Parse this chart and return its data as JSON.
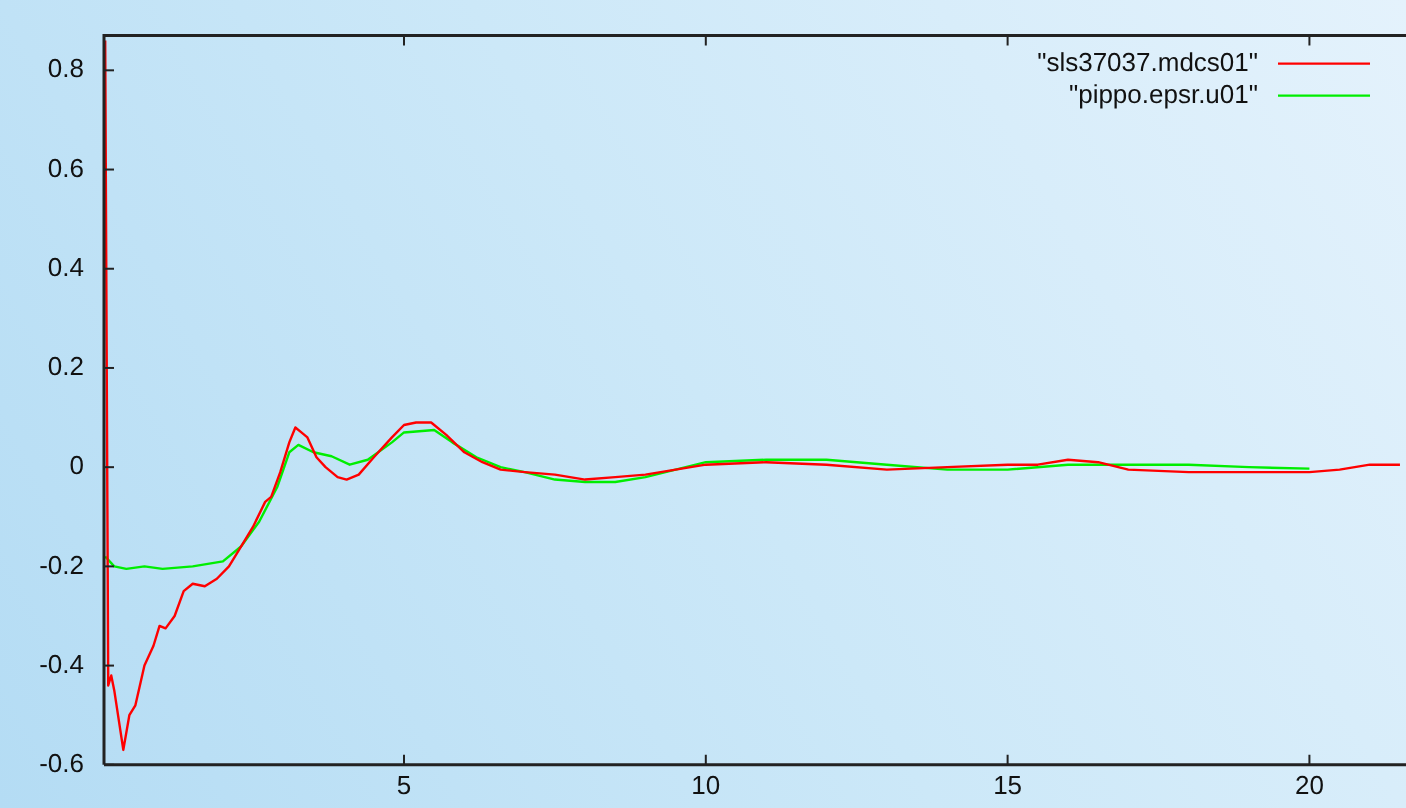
{
  "chart_data": {
    "type": "line",
    "xlim": [
      0.03,
      21.6
    ],
    "ylim": [
      -0.6,
      0.87
    ],
    "xticks": [
      5,
      10,
      15,
      20
    ],
    "yticks": [
      -0.6,
      -0.4,
      -0.2,
      0,
      0.2,
      0.4,
      0.6,
      0.8
    ],
    "grid": false,
    "legend": "top right",
    "marker": "none",
    "line_style": "solid",
    "series": [
      {
        "name": "\"sls37037.mdcs01\"",
        "color": "#ff0000",
        "x": [
          0.05,
          0.1,
          0.15,
          0.2,
          0.35,
          0.45,
          0.55,
          0.7,
          0.85,
          0.95,
          1.05,
          1.2,
          1.35,
          1.5,
          1.7,
          1.9,
          2.1,
          2.3,
          2.5,
          2.7,
          2.8,
          2.95,
          3.1,
          3.2,
          3.3,
          3.4,
          3.55,
          3.7,
          3.9,
          4.05,
          4.25,
          4.5,
          4.8,
          5.0,
          5.2,
          5.45,
          5.7,
          6.0,
          6.3,
          6.6,
          7.0,
          7.5,
          8.0,
          8.5,
          9.0,
          9.5,
          10,
          11,
          12,
          13,
          14,
          15,
          15.5,
          16,
          16.5,
          17,
          18,
          19,
          20,
          20.5,
          21,
          21.5
        ],
        "values": [
          0.86,
          -0.44,
          -0.42,
          -0.45,
          -0.57,
          -0.5,
          -0.48,
          -0.4,
          -0.36,
          -0.32,
          -0.325,
          -0.3,
          -0.25,
          -0.235,
          -0.24,
          -0.225,
          -0.2,
          -0.16,
          -0.12,
          -0.07,
          -0.06,
          -0.01,
          0.05,
          0.08,
          0.07,
          0.06,
          0.02,
          0,
          -0.02,
          -0.025,
          -0.015,
          0.02,
          0.06,
          0.085,
          0.09,
          0.09,
          0.065,
          0.03,
          0.01,
          -0.005,
          -0.01,
          -0.015,
          -0.025,
          -0.02,
          -0.015,
          -0.005,
          0.005,
          0.01,
          0.005,
          -0.005,
          0,
          0.005,
          0.005,
          0.015,
          0.01,
          -0.005,
          -0.01,
          -0.01,
          -0.01,
          -0.005,
          0.005,
          0.005
        ]
      },
      {
        "name": "\"pippo.epsr.u01\"",
        "color": "#00ee00",
        "x": [
          0.05,
          0.2,
          0.4,
          0.7,
          1.0,
          1.5,
          2.0,
          2.3,
          2.6,
          2.9,
          3.1,
          3.25,
          3.5,
          3.8,
          4.1,
          4.4,
          4.8,
          5.0,
          5.5,
          5.8,
          6.2,
          6.6,
          7.0,
          7.5,
          8.0,
          8.5,
          9.0,
          9.5,
          10,
          11,
          12,
          13,
          14,
          15,
          16,
          17,
          18,
          19,
          20
        ],
        "values": [
          -0.18,
          -0.2,
          -0.205,
          -0.2,
          -0.205,
          -0.2,
          -0.19,
          -0.16,
          -0.11,
          -0.04,
          0.03,
          0.045,
          0.03,
          0.022,
          0.005,
          0.015,
          0.05,
          0.07,
          0.075,
          0.05,
          0.02,
          0,
          -0.01,
          -0.025,
          -0.03,
          -0.03,
          -0.02,
          -0.005,
          0.01,
          0.015,
          0.015,
          0.005,
          -0.005,
          -0.005,
          0.005,
          0.005,
          0.005,
          0,
          -0.003
        ]
      }
    ]
  }
}
